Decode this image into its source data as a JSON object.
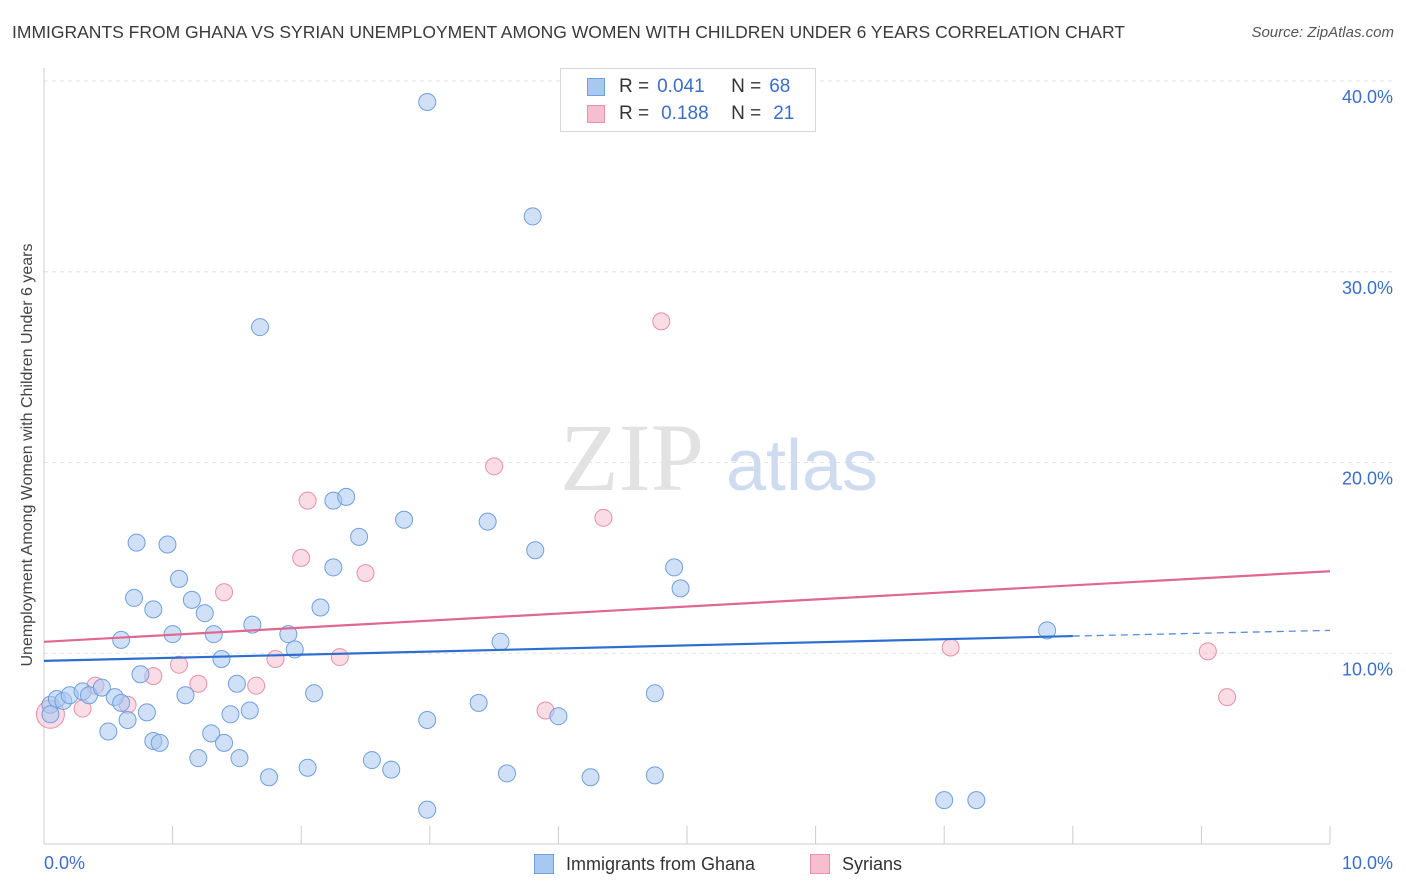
{
  "title": "IMMIGRANTS FROM GHANA VS SYRIAN UNEMPLOYMENT AMONG WOMEN WITH CHILDREN UNDER 6 YEARS CORRELATION CHART",
  "source": "Source: ZipAtlas.com",
  "watermark": {
    "zip": "ZIP",
    "atlas": "atlas"
  },
  "legend": {
    "ghana": {
      "r_label": "R =",
      "r_value": "0.041",
      "n_label": "N =",
      "n_value": "68"
    },
    "syrians": {
      "r_label": "R =",
      "r_value": "0.188",
      "n_label": "N =",
      "n_value": "21"
    }
  },
  "bottom_legend": {
    "ghana": "Immigrants from Ghana",
    "syrians": "Syrians"
  },
  "colors": {
    "ghana_fill": "#a9c8f0",
    "ghana_stroke": "#6f9fde",
    "ghana_line": "#2d6fd0",
    "syrian_fill": "#f6bfd0",
    "syrian_stroke": "#e88fab",
    "syrian_line": "#e0678f",
    "tick_label": "#3b6ecb",
    "grid": "#e3e3e3"
  },
  "chart_data": {
    "type": "scatter",
    "title": "IMMIGRANTS FROM GHANA VS SYRIAN UNEMPLOYMENT AMONG WOMEN WITH CHILDREN UNDER 6 YEARS CORRELATION CHART",
    "xlabel": "",
    "ylabel": "Unemployment Among Women with Children Under 6 years",
    "xlim": [
      0,
      10
    ],
    "ylim": [
      0,
      40
    ],
    "x_tick_labels": [
      "0.0%",
      "10.0%"
    ],
    "y_ticks": [
      10,
      20,
      30,
      40
    ],
    "y_tick_labels": [
      "10.0%",
      "20.0%",
      "30.0%",
      "40.0%"
    ],
    "grid": true,
    "series": [
      {
        "name": "Immigrants from Ghana",
        "r": 0.041,
        "n": 68,
        "trend": {
          "x": [
            0,
            8
          ],
          "y": [
            9.6,
            10.9
          ],
          "dashed_extension": {
            "x": [
              8,
              10
            ],
            "y": [
              10.9,
              11.2
            ]
          }
        },
        "points": [
          [
            0.05,
            7.3
          ],
          [
            0.1,
            7.6
          ],
          [
            0.15,
            7.5
          ],
          [
            0.2,
            7.8
          ],
          [
            0.3,
            8.0
          ],
          [
            0.35,
            7.8
          ],
          [
            0.45,
            8.2
          ],
          [
            0.5,
            5.9
          ],
          [
            0.55,
            7.7
          ],
          [
            0.6,
            7.4
          ],
          [
            0.65,
            6.5
          ],
          [
            0.75,
            8.9
          ],
          [
            0.8,
            6.9
          ],
          [
            0.85,
            5.4
          ],
          [
            0.9,
            5.3
          ],
          [
            0.7,
            12.9
          ],
          [
            0.72,
            15.8
          ],
          [
            0.96,
            15.7
          ],
          [
            0.6,
            10.7
          ],
          [
            0.85,
            12.3
          ],
          [
            1.0,
            11.0
          ],
          [
            1.05,
            13.9
          ],
          [
            1.1,
            7.8
          ],
          [
            1.15,
            12.8
          ],
          [
            1.2,
            4.5
          ],
          [
            1.25,
            12.1
          ],
          [
            1.3,
            5.8
          ],
          [
            1.32,
            11.0
          ],
          [
            1.4,
            5.3
          ],
          [
            1.38,
            9.7
          ],
          [
            1.45,
            6.8
          ],
          [
            1.5,
            8.4
          ],
          [
            1.52,
            4.5
          ],
          [
            1.6,
            7.0
          ],
          [
            1.62,
            11.5
          ],
          [
            1.68,
            27.1
          ],
          [
            1.75,
            3.5
          ],
          [
            1.9,
            11.0
          ],
          [
            1.95,
            10.2
          ],
          [
            2.05,
            4.0
          ],
          [
            2.1,
            7.9
          ],
          [
            2.15,
            12.4
          ],
          [
            2.25,
            14.5
          ],
          [
            2.25,
            18.0
          ],
          [
            2.35,
            18.2
          ],
          [
            2.45,
            16.1
          ],
          [
            2.55,
            4.4
          ],
          [
            2.7,
            3.9
          ],
          [
            2.8,
            17.0
          ],
          [
            2.98,
            6.5
          ],
          [
            2.98,
            1.8
          ],
          [
            2.98,
            38.9
          ],
          [
            3.38,
            7.4
          ],
          [
            3.45,
            16.9
          ],
          [
            3.55,
            10.6
          ],
          [
            3.6,
            3.7
          ],
          [
            3.8,
            32.9
          ],
          [
            3.82,
            15.4
          ],
          [
            4.0,
            6.7
          ],
          [
            4.25,
            3.5
          ],
          [
            4.75,
            7.9
          ],
          [
            4.75,
            3.6
          ],
          [
            4.9,
            14.5
          ],
          [
            4.95,
            13.4
          ],
          [
            7.0,
            2.3
          ],
          [
            7.25,
            2.3
          ],
          [
            7.8,
            11.2
          ],
          [
            0.05,
            6.8
          ]
        ]
      },
      {
        "name": "Syrians",
        "r": 0.188,
        "n": 21,
        "trend": {
          "x": [
            0,
            10
          ],
          "y": [
            10.6,
            14.3
          ]
        },
        "points": [
          [
            0.05,
            6.8
          ],
          [
            0.3,
            7.1
          ],
          [
            0.4,
            8.3
          ],
          [
            0.65,
            7.3
          ],
          [
            0.85,
            8.8
          ],
          [
            1.05,
            9.4
          ],
          [
            1.2,
            8.4
          ],
          [
            1.4,
            13.2
          ],
          [
            1.65,
            8.3
          ],
          [
            1.8,
            9.7
          ],
          [
            2.0,
            15.0
          ],
          [
            2.05,
            18.0
          ],
          [
            2.3,
            9.8
          ],
          [
            2.5,
            14.2
          ],
          [
            3.9,
            7.0
          ],
          [
            3.5,
            19.8
          ],
          [
            4.35,
            17.1
          ],
          [
            4.8,
            27.4
          ],
          [
            7.05,
            10.3
          ],
          [
            9.05,
            10.1
          ],
          [
            9.2,
            7.7
          ]
        ]
      }
    ]
  }
}
